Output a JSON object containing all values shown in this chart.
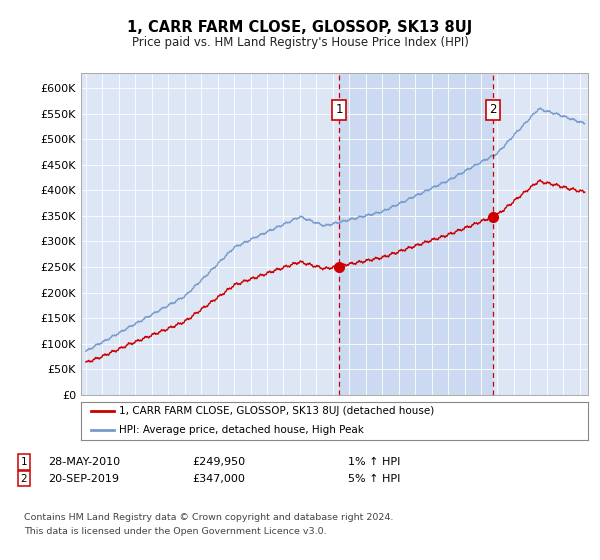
{
  "title": "1, CARR FARM CLOSE, GLOSSOP, SK13 8UJ",
  "subtitle": "Price paid vs. HM Land Registry's House Price Index (HPI)",
  "ytick_labels": [
    "£0",
    "£50K",
    "£100K",
    "£150K",
    "£200K",
    "£250K",
    "£300K",
    "£350K",
    "£400K",
    "£450K",
    "£500K",
    "£550K",
    "£600K"
  ],
  "ytick_values": [
    0,
    50000,
    100000,
    150000,
    200000,
    250000,
    300000,
    350000,
    400000,
    450000,
    500000,
    550000,
    600000
  ],
  "ylim": [
    0,
    630000
  ],
  "xlim_start": 1994.7,
  "xlim_end": 2025.5,
  "plot_bg_color": "#dce6f5",
  "shade_color": "#c8d8f0",
  "line_color_property": "#cc0000",
  "line_color_hpi": "#7799cc",
  "marker1_x": 2010.38,
  "marker1_y": 249950,
  "marker2_x": 2019.72,
  "marker2_y": 347000,
  "sale1_date": "28-MAY-2010",
  "sale1_price": "£249,950",
  "sale1_note": "1% ↑ HPI",
  "sale2_date": "20-SEP-2019",
  "sale2_price": "£347,000",
  "sale2_note": "5% ↑ HPI",
  "legend_line1": "1, CARR FARM CLOSE, GLOSSOP, SK13 8UJ (detached house)",
  "legend_line2": "HPI: Average price, detached house, High Peak",
  "footnote1": "Contains HM Land Registry data © Crown copyright and database right 2024.",
  "footnote2": "This data is licensed under the Open Government Licence v3.0.",
  "marker_box_color": "#cc0000",
  "grid_color": "#ffffff",
  "spine_color": "#aaaaaa"
}
